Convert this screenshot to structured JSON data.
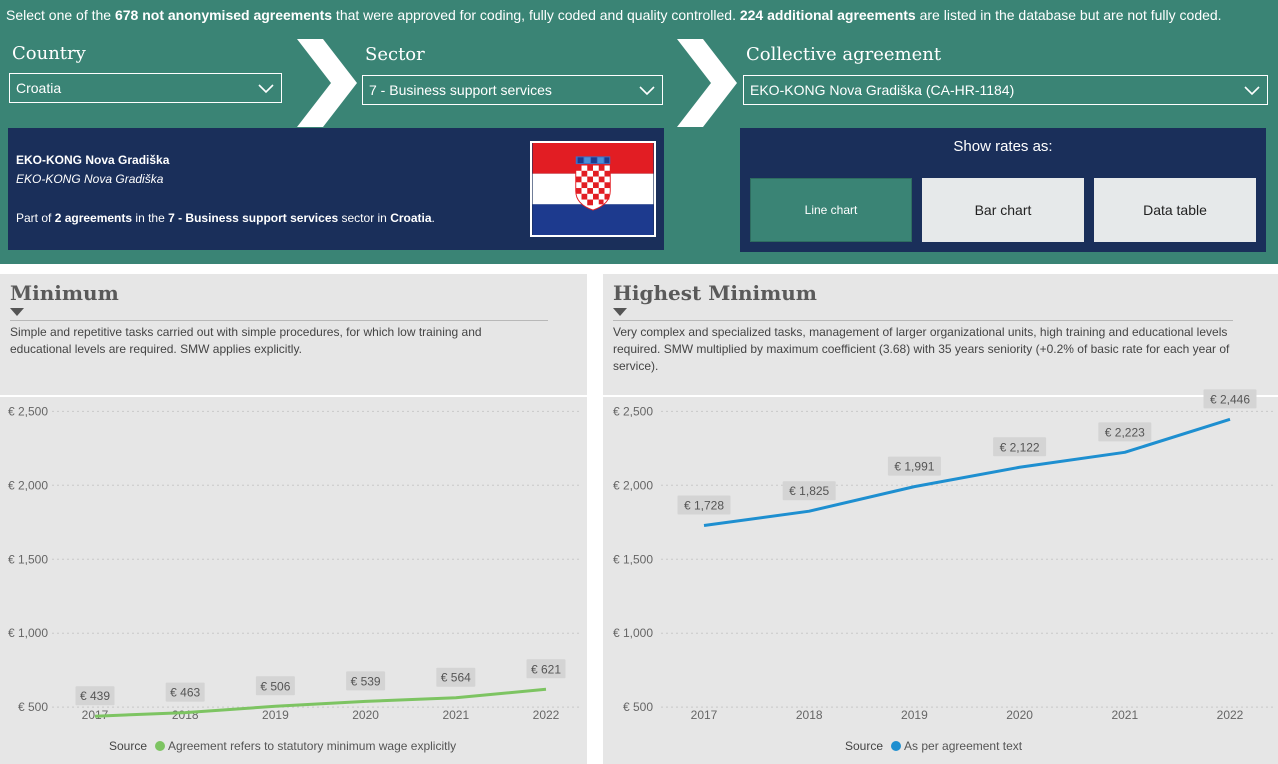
{
  "intro": {
    "p1": "Select one of the ",
    "b1": "678 not anonymised agreements",
    "p2": " that were approved for coding, fully coded and quality controlled. ",
    "b2": "224 additional agreements",
    "p3": " are listed in the database but are not fully coded."
  },
  "filters": {
    "country": {
      "label": "Country",
      "value": "Croatia"
    },
    "sector": {
      "label": "Sector",
      "value": "7 - Business support services"
    },
    "agreement": {
      "label": "Collective agreement",
      "value": "EKO-KONG Nova Gradiška (CA-HR-1184)"
    }
  },
  "info": {
    "title": "EKO-KONG Nova Gradiška",
    "subtitle": "EKO-KONG Nova Gradiška",
    "desc_p1": "Part of ",
    "desc_b1": "2 agreements",
    "desc_p2": " in the ",
    "desc_b2": "7 - Business support services",
    "desc_p3": " sector in ",
    "desc_b3": "Croatia",
    "desc_p4": "."
  },
  "rates": {
    "title": "Show rates as:",
    "buttons": [
      {
        "label": "Line chart",
        "active": true
      },
      {
        "label": "Bar chart",
        "active": false
      },
      {
        "label": "Data table",
        "active": false
      }
    ]
  },
  "colors": {
    "top_bg": "#3a8475",
    "navy": "#1a2f5a",
    "green_line": "#7dc462",
    "blue_line": "#1e8fd0",
    "panel_bg": "#e6e6e6"
  },
  "chart_data": [
    {
      "type": "line",
      "title": "Minimum",
      "description": "Simple and repetitive tasks carried out with simple procedures, for which low training and educational levels are required. SMW applies explicitly.",
      "categories": [
        "2017",
        "2018",
        "2019",
        "2020",
        "2021",
        "2022"
      ],
      "series": [
        {
          "name": "Agreement refers to statutory minimum wage explicitly",
          "values": [
            439,
            463,
            506,
            539,
            564,
            621
          ],
          "color": "#7dc462"
        }
      ],
      "data_labels": [
        "€ 439",
        "€ 463",
        "€ 506",
        "€ 539",
        "€ 564",
        "€ 621"
      ],
      "yticks": [
        500,
        1000,
        1500,
        2000,
        2500
      ],
      "ytick_labels": [
        "€ 500",
        "€ 1,000",
        "€ 1,500",
        "€ 2,000",
        "€ 2,500"
      ],
      "ylim": [
        420,
        2570
      ],
      "legend_title": "Source",
      "legend": "bottom-center",
      "grid": true
    },
    {
      "type": "line",
      "title": "Highest Minimum",
      "description": "Very complex and specialized tasks, management of larger organizational units, high training and educational levels required. SMW multiplied by maximum coefficient (3.68) with 35 years seniority (+0.2% of basic rate for each year of service).",
      "categories": [
        "2017",
        "2018",
        "2019",
        "2020",
        "2021",
        "2022"
      ],
      "series": [
        {
          "name": "As per agreement text",
          "values": [
            1728,
            1825,
            1991,
            2122,
            2223,
            2446
          ],
          "color": "#1e8fd0"
        }
      ],
      "data_labels": [
        "€ 1,728",
        "€ 1,825",
        "€ 1,991",
        "€ 2,122",
        "€ 2,223",
        "€ 2,446"
      ],
      "yticks": [
        500,
        1000,
        1500,
        2000,
        2500
      ],
      "ytick_labels": [
        "€ 500",
        "€ 1,000",
        "€ 1,500",
        "€ 2,000",
        "€ 2,500"
      ],
      "ylim": [
        420,
        2570
      ],
      "legend_title": "Source",
      "legend": "bottom-center",
      "grid": true
    }
  ]
}
